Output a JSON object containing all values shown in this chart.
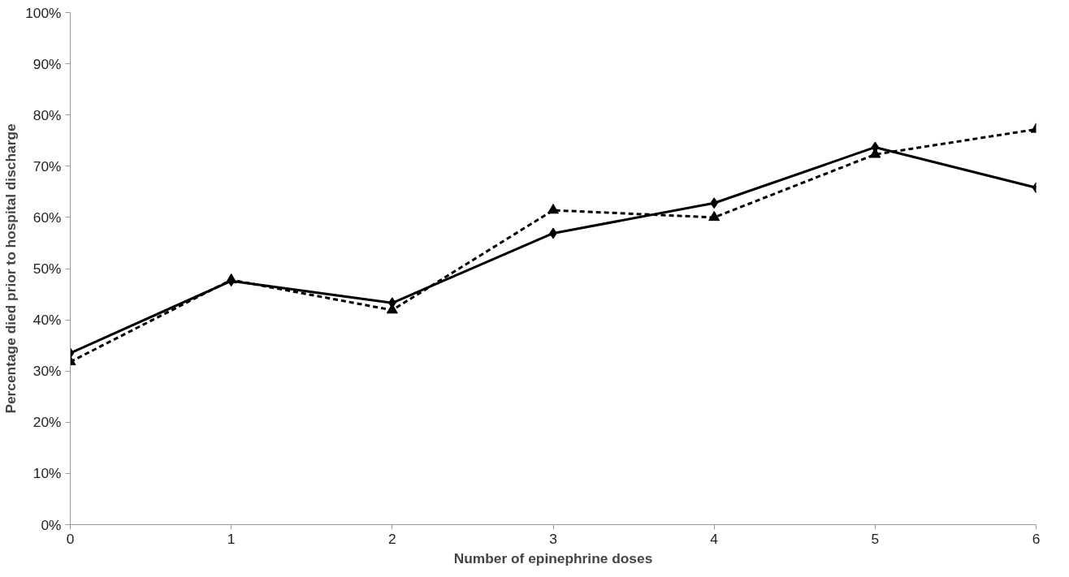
{
  "chart_data": {
    "type": "line",
    "xlabel": "Number of epinephrine doses",
    "ylabel": "Percentage died prior to hospital discharge",
    "x": [
      0,
      1,
      2,
      3,
      4,
      5,
      6
    ],
    "series": [
      {
        "color": "#000000",
        "values": [
          33.5,
          47.6,
          43.3,
          56.9,
          62.8,
          73.7,
          65.8
        ],
        "marker": "diamond",
        "line_style": "solid"
      },
      {
        "color": "#000000",
        "values": [
          31.8,
          47.8,
          41.9,
          61.4,
          60.0,
          72.3,
          77.2
        ],
        "marker": "triangle",
        "line_style": "dashed"
      }
    ],
    "xlim": [
      0,
      6
    ],
    "xticks": [
      0,
      1,
      2,
      3,
      4,
      5,
      6
    ],
    "ylim": [
      0,
      100
    ],
    "yticks": [
      {
        "value": 0,
        "label": "0%"
      },
      {
        "value": 10,
        "label": "10%"
      },
      {
        "value": 20,
        "label": "20%"
      },
      {
        "value": 30,
        "label": "30%"
      },
      {
        "value": 40,
        "label": "40%"
      },
      {
        "value": 50,
        "label": "50%"
      },
      {
        "value": 60,
        "label": "60%"
      },
      {
        "value": 70,
        "label": "70%"
      },
      {
        "value": 80,
        "label": "80%"
      },
      {
        "value": 90,
        "label": "90%"
      },
      {
        "value": 100,
        "label": "100%"
      }
    ],
    "grid": false
  }
}
